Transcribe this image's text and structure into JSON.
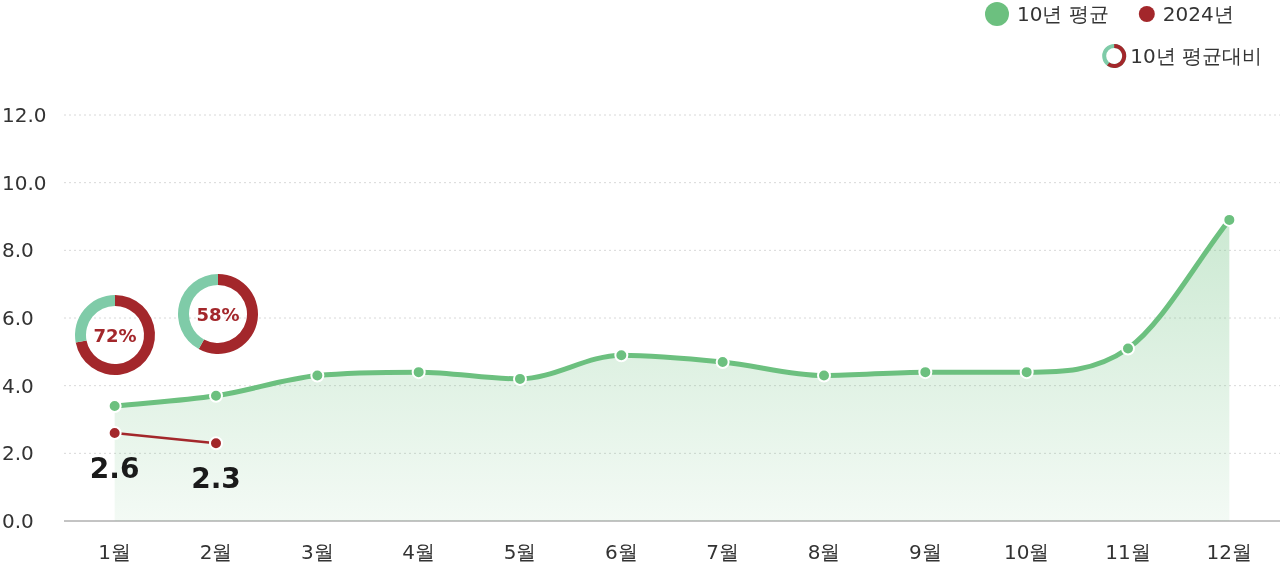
{
  "chart_data": [
    {
      "type": "line",
      "categories": [
        "1월",
        "2월",
        "3월",
        "4월",
        "5월",
        "6월",
        "7월",
        "8월",
        "9월",
        "10월",
        "11월",
        "12월"
      ],
      "series": [
        {
          "name": "10년 평균",
          "type": "area",
          "color": "#6cc07f",
          "values": [
            3.4,
            3.7,
            4.3,
            4.4,
            4.2,
            4.9,
            4.7,
            4.3,
            4.4,
            4.4,
            5.1,
            8.9
          ]
        },
        {
          "name": "2024년",
          "type": "line",
          "color": "#a3272b",
          "values": [
            2.6,
            2.3,
            null,
            null,
            null,
            null,
            null,
            null,
            null,
            null,
            null,
            null
          ],
          "value_labels": [
            "2.6",
            "2.3",
            null,
            null,
            null,
            null,
            null,
            null,
            null,
            null,
            null,
            null
          ]
        }
      ],
      "ylim": [
        0,
        12
      ],
      "yticks": [
        {
          "value": 0,
          "label": "0.0"
        },
        {
          "value": 2,
          "label": "2.0"
        },
        {
          "value": 4,
          "label": "4.0"
        },
        {
          "value": 6,
          "label": "6.0"
        },
        {
          "value": 8,
          "label": "8.0"
        },
        {
          "value": 10,
          "label": "10.0"
        },
        {
          "value": 12,
          "label": "12.0"
        }
      ],
      "grid": "y",
      "legend": "top right",
      "marker": "circle",
      "annotations": [
        "10년 평균대비"
      ]
    },
    {
      "type": "donut",
      "categories": [
        null,
        null
      ],
      "values": [
        72,
        28
      ],
      "colors": [
        "#a3272b",
        "#7fcba8"
      ],
      "value_labels": [
        "72%",
        null
      ]
    },
    {
      "type": "donut",
      "categories": [
        null,
        null
      ],
      "values": [
        58,
        42
      ],
      "colors": [
        "#a3272b",
        "#7fcba8"
      ],
      "value_labels": [
        "58%",
        null
      ]
    }
  ]
}
